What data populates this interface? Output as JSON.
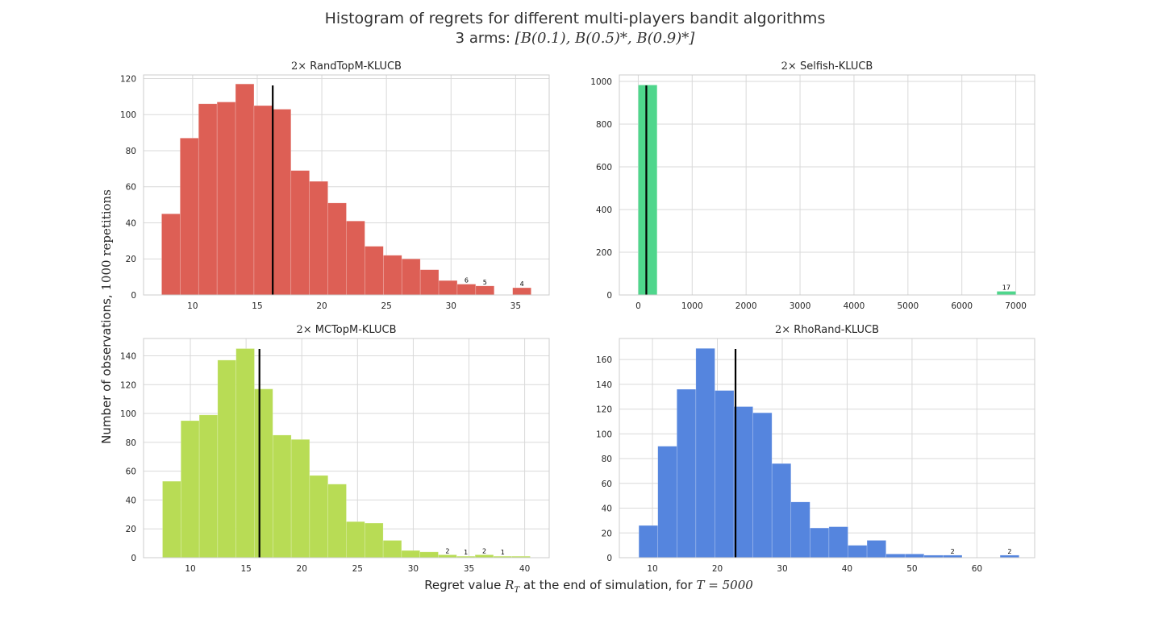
{
  "figure": {
    "title": "Histogram of regrets for different multi-players bandit algorithms",
    "subtitle_prefix": "3 arms: ",
    "subtitle_math": "[B(0.1), B(0.5)*, B(0.9)*]",
    "ylabel_text": "Number of observations, ",
    "ylabel_math": "1000 repetitions",
    "xlabel_text": "Regret value ",
    "xlabel_math_r": "R",
    "xlabel_math_sub": "T",
    "xlabel_text2": " at the end of simulation, for ",
    "xlabel_math_t": "T = 5000"
  },
  "chart_data": [
    {
      "type": "bar",
      "title_prefix": "2×",
      "title": "RandTopM-KLUCB",
      "color": "#dd5f55",
      "bin_start": 7.6,
      "bin_width": 1.43,
      "counts": [
        45,
        87,
        106,
        107,
        117,
        105,
        103,
        69,
        63,
        51,
        41,
        27,
        22,
        20,
        14,
        8,
        6,
        5,
        0,
        4
      ],
      "labels": [
        {
          "bin": 16,
          "text": "6"
        },
        {
          "bin": 17,
          "text": "5"
        },
        {
          "bin": 19,
          "text": "4"
        }
      ],
      "mean": 16.2,
      "xlim": [
        6.2,
        37.6
      ],
      "ylim": [
        0,
        122
      ],
      "xticks": [
        10,
        15,
        20,
        25,
        30,
        35
      ],
      "yticks": [
        0,
        20,
        40,
        60,
        80,
        100,
        120
      ],
      "grid": true
    },
    {
      "type": "bar",
      "title_prefix": "2×",
      "title": "Selfish-KLUCB",
      "color": "#4fd68c",
      "bin_start": 0,
      "bin_width": 350,
      "counts": [
        983,
        0,
        0,
        0,
        0,
        0,
        0,
        0,
        0,
        0,
        0,
        0,
        0,
        0,
        0,
        0,
        0,
        0,
        0,
        17
      ],
      "labels": [
        {
          "bin": 19,
          "text": "17"
        }
      ],
      "mean": 150,
      "xlim": [
        -350,
        7350
      ],
      "ylim": [
        0,
        1030
      ],
      "xticks": [
        0,
        1000,
        2000,
        3000,
        4000,
        5000,
        6000,
        7000
      ],
      "yticks": [
        0,
        200,
        400,
        600,
        800,
        1000
      ],
      "grid": true
    },
    {
      "type": "bar",
      "title_prefix": "2×",
      "title": "MCTopM-KLUCB",
      "color": "#b8dc55",
      "bin_start": 7.5,
      "bin_width": 1.65,
      "counts": [
        53,
        95,
        99,
        137,
        145,
        117,
        85,
        82,
        57,
        51,
        25,
        24,
        12,
        5,
        4,
        2,
        1,
        2,
        1,
        1
      ],
      "labels": [
        {
          "bin": 15,
          "text": "2"
        },
        {
          "bin": 16,
          "text": "1"
        },
        {
          "bin": 17,
          "text": "2"
        },
        {
          "bin": 18,
          "text": "1"
        }
      ],
      "mean": 16.2,
      "xlim": [
        5.8,
        42.2
      ],
      "ylim": [
        0,
        152
      ],
      "xticks": [
        10,
        15,
        20,
        25,
        30,
        35,
        40
      ],
      "yticks": [
        0,
        20,
        40,
        60,
        80,
        100,
        120,
        140
      ],
      "grid": true
    },
    {
      "type": "bar",
      "title_prefix": "2×",
      "title": "RhoRand-KLUCB",
      "color": "#5585de",
      "bin_start": 7.9,
      "bin_width": 2.93,
      "counts": [
        26,
        90,
        136,
        169,
        135,
        122,
        117,
        76,
        45,
        24,
        25,
        10,
        14,
        3,
        3,
        2,
        2,
        0,
        0,
        2
      ],
      "labels": [
        {
          "bin": 16,
          "text": "2"
        },
        {
          "bin": 19,
          "text": "2"
        }
      ],
      "mean": 22.8,
      "xlim": [
        4.9,
        68.9
      ],
      "ylim": [
        0,
        177
      ],
      "xticks": [
        10,
        20,
        30,
        40,
        50,
        60
      ],
      "yticks": [
        0,
        20,
        40,
        60,
        80,
        100,
        120,
        140,
        160
      ],
      "grid": true
    }
  ]
}
